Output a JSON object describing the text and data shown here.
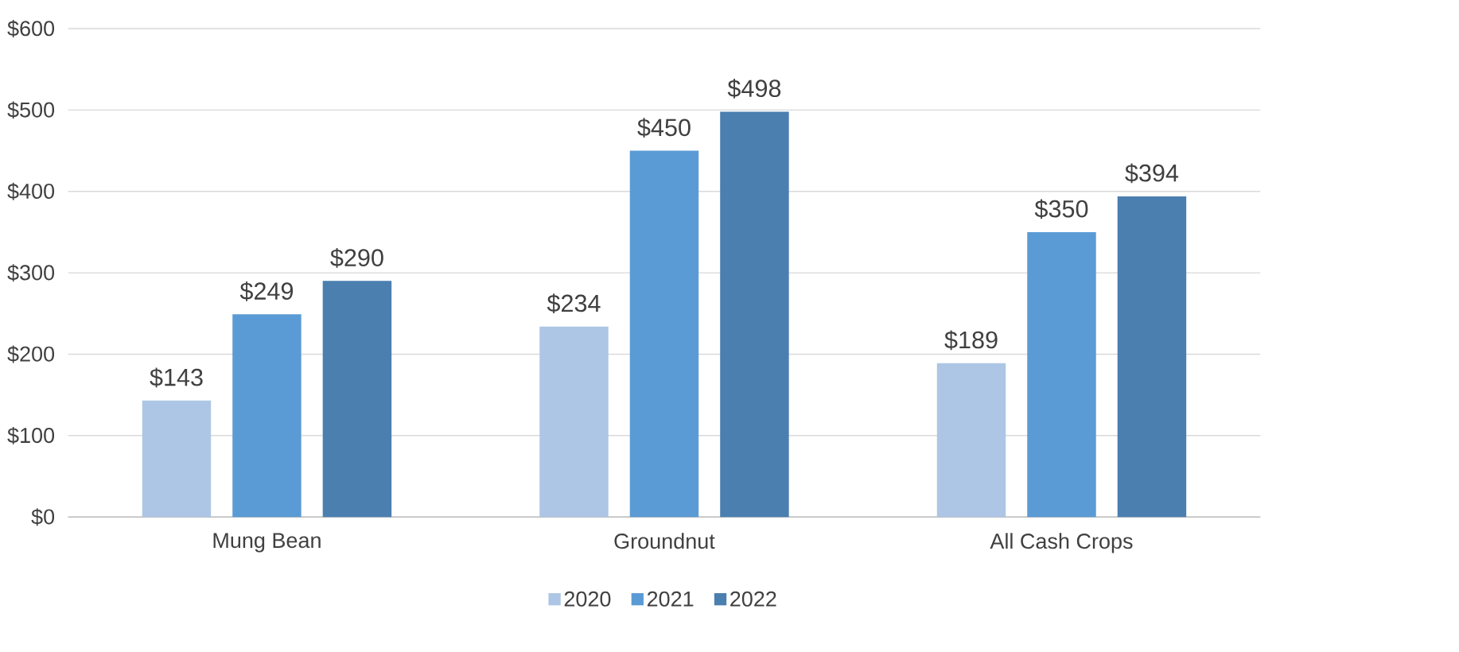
{
  "chart_data": {
    "type": "bar",
    "categories": [
      "Mung Bean",
      "Groundnut",
      "All Cash Crops"
    ],
    "series": [
      {
        "name": "2020",
        "color": "#adc6e5",
        "values": [
          143,
          234,
          189
        ],
        "value_labels": [
          "$143",
          "$234",
          "$189"
        ]
      },
      {
        "name": "2021",
        "color": "#5b9bd5",
        "values": [
          249,
          450,
          350
        ],
        "value_labels": [
          "$249",
          "$450",
          "$350"
        ]
      },
      {
        "name": "2022",
        "color": "#4a7fb0",
        "values": [
          290,
          498,
          394
        ],
        "value_labels": [
          "$290",
          "$498",
          "$394"
        ]
      }
    ],
    "ylim": [
      0,
      600
    ],
    "yticks": [
      {
        "value": 0,
        "label": "$0"
      },
      {
        "value": 100,
        "label": "$100"
      },
      {
        "value": 200,
        "label": "$200"
      },
      {
        "value": 300,
        "label": "$300"
      },
      {
        "value": 400,
        "label": "$400"
      },
      {
        "value": 500,
        "label": "$500"
      },
      {
        "value": 600,
        "label": "$600"
      }
    ],
    "grid": "y",
    "legend": "bottom"
  }
}
